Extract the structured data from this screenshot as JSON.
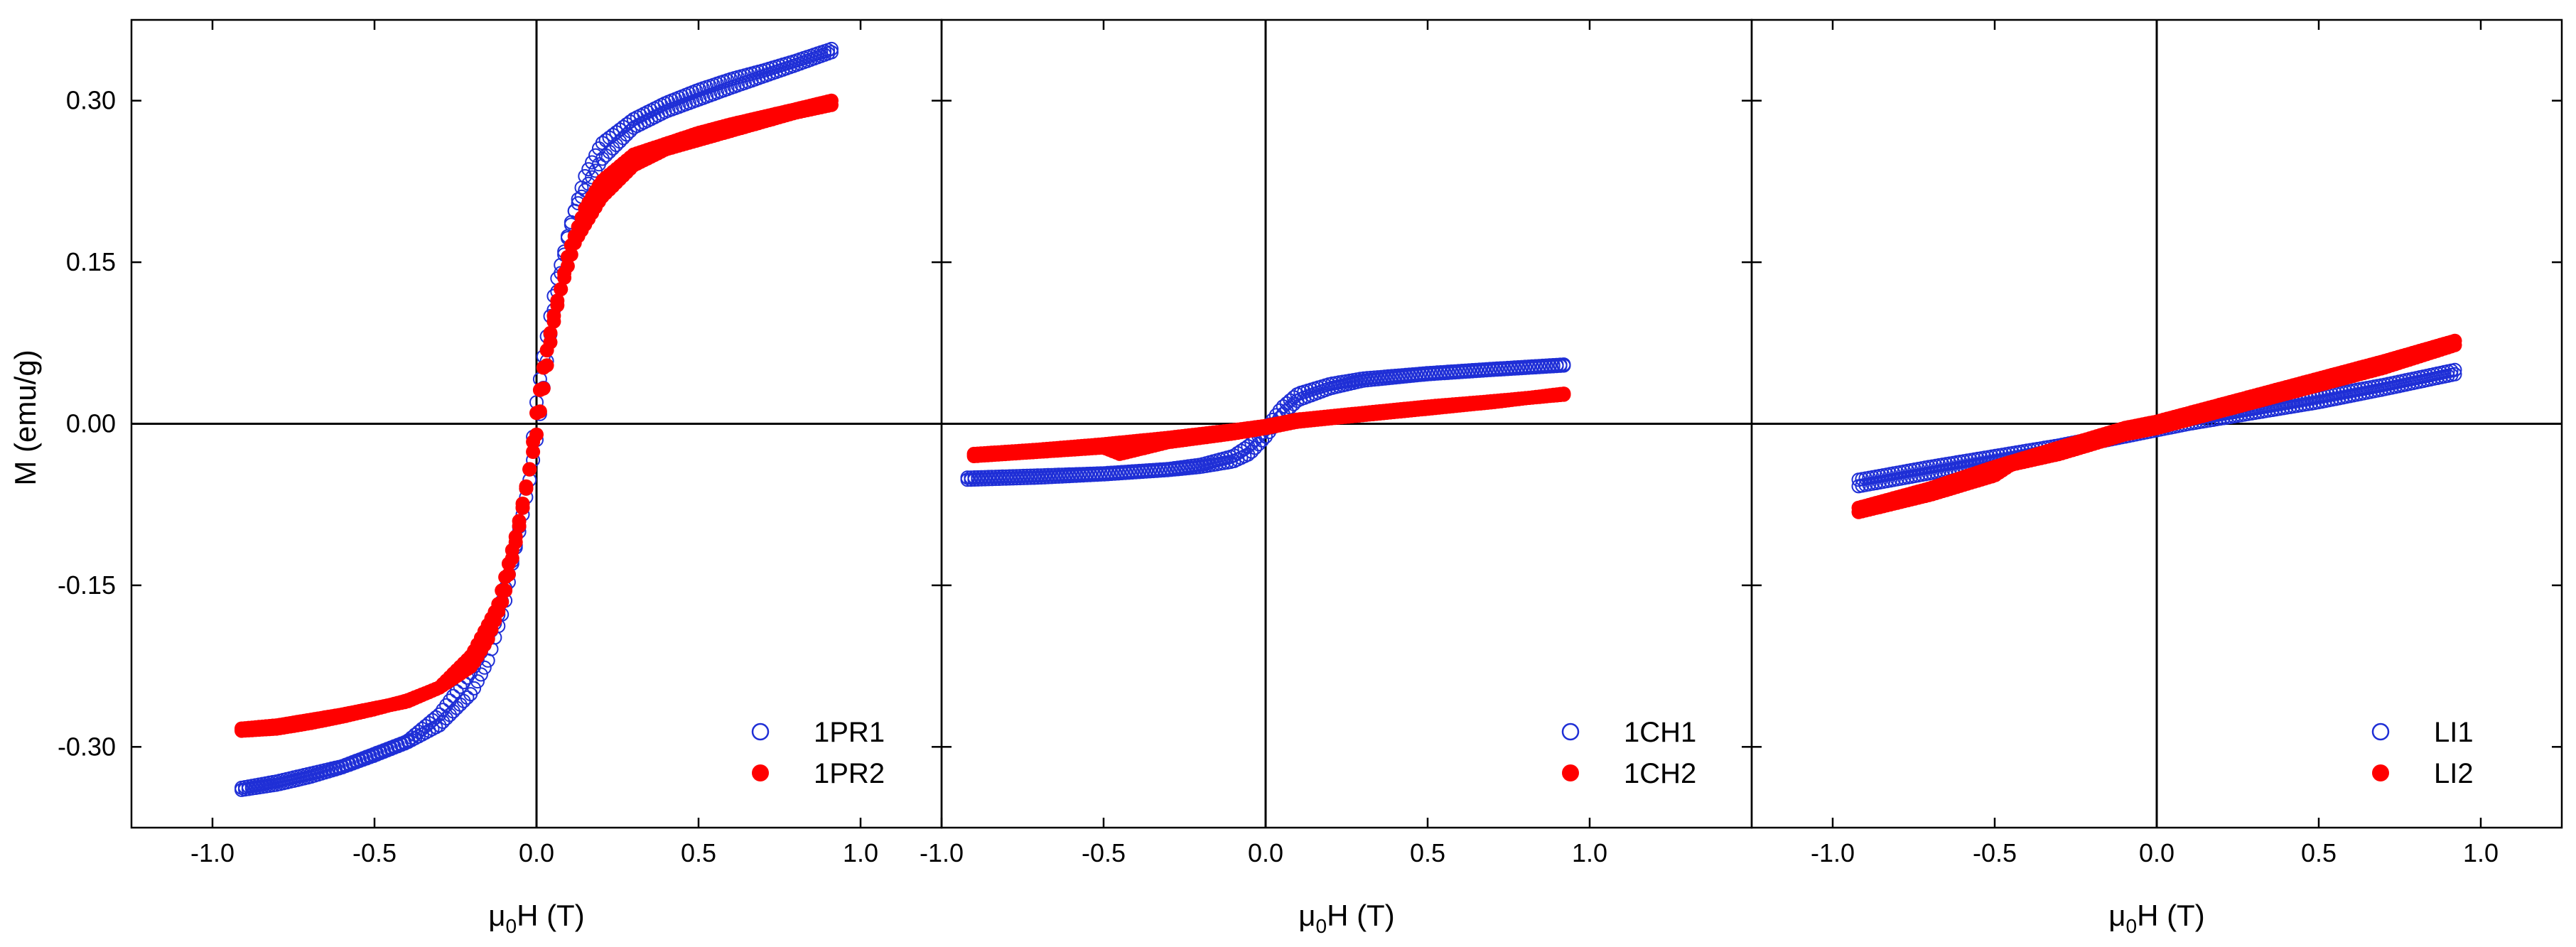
{
  "figure": {
    "ylabel": "M (emu/g)",
    "xlabel_mu": "μ",
    "xlabel_sub": "0",
    "xlabel_rest": "H (T)"
  },
  "colors": {
    "blue": "#1f2fd6",
    "red": "#ff0000",
    "axis": "#000000"
  },
  "chart_data": [
    {
      "type": "scatter",
      "title": "",
      "xlabel": "μ0H (T)",
      "ylabel": "M (emu/g)",
      "xlim": [
        -1.25,
        1.25
      ],
      "ylim": [
        -0.375,
        0.375
      ],
      "xticks": [
        -1.0,
        -0.5,
        0.0,
        0.5,
        1.0
      ],
      "xtick_labels": [
        "-1.0",
        "-0.5",
        "0.0",
        "0.5",
        "1.0"
      ],
      "yticks": [
        0.3,
        0.15,
        0.0,
        -0.15,
        -0.3
      ],
      "ytick_labels": [
        "0.30",
        "0.15",
        "0.00",
        "-0.15",
        "-0.30"
      ],
      "legend": "bottom-right",
      "series": [
        {
          "name": "1PR1",
          "marker": "open-circle",
          "color": "#1f2fd6",
          "branch_upper": {
            "x": [
              -0.91,
              -0.8,
              -0.6,
              -0.4,
              -0.3,
              -0.2,
              -0.12,
              -0.06,
              -0.02,
              0.0,
              0.02,
              0.05,
              0.1,
              0.15,
              0.2,
              0.3,
              0.4,
              0.5,
              0.6,
              0.7,
              0.8,
              0.91
            ],
            "y": [
              -0.338,
              -0.332,
              -0.318,
              -0.295,
              -0.27,
              -0.23,
              -0.18,
              -0.11,
              -0.05,
              -0.015,
              0.03,
              0.1,
              0.18,
              0.23,
              0.26,
              0.283,
              0.298,
              0.31,
              0.32,
              0.328,
              0.337,
              0.348
            ]
          },
          "branch_lower": {
            "x": [
              -0.91,
              -0.8,
              -0.7,
              -0.6,
              -0.5,
              -0.4,
              -0.3,
              -0.2,
              -0.15,
              -0.1,
              -0.05,
              -0.02,
              0.0,
              0.02,
              0.06,
              0.12,
              0.2,
              0.3,
              0.4,
              0.6,
              0.8,
              0.91
            ],
            "y": [
              -0.34,
              -0.335,
              -0.328,
              -0.319,
              -0.308,
              -0.296,
              -0.28,
              -0.25,
              -0.22,
              -0.17,
              -0.09,
              -0.04,
              0.02,
              0.06,
              0.13,
              0.2,
              0.245,
              0.275,
              0.29,
              0.312,
              0.333,
              0.345
            ]
          }
        },
        {
          "name": "1PR2",
          "marker": "filled-circle",
          "color": "#ff0000",
          "branch_upper": {
            "x": [
              -0.91,
              -0.8,
              -0.6,
              -0.4,
              -0.3,
              -0.2,
              -0.12,
              -0.06,
              -0.02,
              0.0,
              0.02,
              0.05,
              0.1,
              0.15,
              0.2,
              0.3,
              0.4,
              0.5,
              0.6,
              0.7,
              0.8,
              0.91
            ],
            "y": [
              -0.283,
              -0.28,
              -0.27,
              -0.258,
              -0.245,
              -0.215,
              -0.17,
              -0.1,
              -0.04,
              -0.01,
              0.03,
              0.09,
              0.16,
              0.2,
              0.225,
              0.25,
              0.26,
              0.27,
              0.278,
              0.285,
              0.292,
              0.3
            ]
          },
          "branch_lower": {
            "x": [
              -0.91,
              -0.8,
              -0.7,
              -0.6,
              -0.5,
              -0.4,
              -0.3,
              -0.2,
              -0.15,
              -0.1,
              -0.05,
              -0.02,
              0.0,
              0.02,
              0.06,
              0.12,
              0.2,
              0.3,
              0.4,
              0.6,
              0.8,
              0.91
            ],
            "y": [
              -0.285,
              -0.283,
              -0.278,
              -0.272,
              -0.265,
              -0.257,
              -0.245,
              -0.225,
              -0.2,
              -0.16,
              -0.09,
              -0.04,
              0.01,
              0.05,
              0.11,
              0.17,
              0.21,
              0.24,
              0.255,
              0.272,
              0.289,
              0.296
            ]
          }
        }
      ]
    },
    {
      "type": "scatter",
      "title": "",
      "xlabel": "μ0H (T)",
      "ylabel": "",
      "xlim": [
        -1.0,
        1.5
      ],
      "ylim": [
        -0.375,
        0.375
      ],
      "xticks": [
        -1.0,
        -0.5,
        0.0,
        0.5,
        1.0
      ],
      "xtick_labels": [
        "-1.0",
        "-0.5",
        "0.0",
        "0.5",
        "1.0"
      ],
      "legend": "bottom-right",
      "series": [
        {
          "name": "1CH1",
          "marker": "open-circle",
          "color": "#1f2fd6",
          "branch_upper": {
            "x": [
              -0.92,
              -0.7,
              -0.5,
              -0.3,
              -0.2,
              -0.1,
              -0.05,
              0.0,
              0.05,
              0.1,
              0.2,
              0.3,
              0.5,
              0.7,
              0.92
            ],
            "y": [
              -0.05,
              -0.048,
              -0.046,
              -0.042,
              -0.038,
              -0.03,
              -0.02,
              -0.005,
              0.015,
              0.028,
              0.037,
              0.042,
              0.047,
              0.051,
              0.055
            ]
          },
          "branch_lower": {
            "x": [
              -0.92,
              -0.7,
              -0.5,
              -0.3,
              -0.2,
              -0.1,
              -0.05,
              0.0,
              0.05,
              0.1,
              0.2,
              0.3,
              0.5,
              0.7,
              0.92
            ],
            "y": [
              -0.052,
              -0.05,
              -0.047,
              -0.043,
              -0.04,
              -0.035,
              -0.028,
              -0.012,
              0.008,
              0.022,
              0.033,
              0.04,
              0.046,
              0.05,
              0.054
            ]
          }
        },
        {
          "name": "1CH2",
          "marker": "filled-circle",
          "color": "#ff0000",
          "branch_upper": {
            "x": [
              -0.9,
              -0.7,
              -0.5,
              -0.3,
              -0.1,
              0.0,
              0.1,
              0.3,
              0.5,
              0.7,
              0.92
            ],
            "y": [
              -0.028,
              -0.024,
              -0.019,
              -0.013,
              -0.006,
              -0.002,
              0.004,
              0.01,
              0.016,
              0.021,
              0.027
            ]
          },
          "branch_lower": {
            "x": [
              -0.9,
              -0.7,
              -0.5,
              -0.45,
              -0.3,
              -0.1,
              0.0,
              0.1,
              0.3,
              0.5,
              0.7,
              0.92
            ],
            "y": [
              -0.03,
              -0.026,
              -0.022,
              -0.028,
              -0.017,
              -0.009,
              -0.004,
              0.002,
              0.008,
              0.014,
              0.02,
              0.028
            ]
          }
        }
      ]
    },
    {
      "type": "scatter",
      "title": "",
      "xlabel": "μ0H (T)",
      "ylabel": "",
      "xlim": [
        -1.25,
        1.25
      ],
      "ylim": [
        -0.375,
        0.375
      ],
      "xticks": [
        -1.0,
        -0.5,
        0.0,
        0.5,
        1.0
      ],
      "xtick_labels": [
        "-1.0",
        "-0.5",
        "0.0",
        "0.5",
        "1.0"
      ],
      "legend": "bottom-right",
      "series": [
        {
          "name": "LI1",
          "marker": "open-circle",
          "color": "#1f2fd6",
          "branch_upper": {
            "x": [
              -0.92,
              -0.7,
              -0.5,
              -0.3,
              -0.1,
              0.0,
              0.1,
              0.3,
              0.5,
              0.7,
              0.92
            ],
            "y": [
              -0.052,
              -0.04,
              -0.03,
              -0.02,
              -0.008,
              -0.002,
              0.004,
              0.014,
              0.025,
              0.036,
              0.05
            ]
          },
          "branch_lower": {
            "x": [
              -0.92,
              -0.7,
              -0.5,
              -0.3,
              -0.1,
              0.0,
              0.1,
              0.3,
              0.5,
              0.7,
              0.92
            ],
            "y": [
              -0.058,
              -0.046,
              -0.035,
              -0.024,
              -0.012,
              -0.006,
              0.0,
              0.01,
              0.02,
              0.032,
              0.046
            ]
          }
        },
        {
          "name": "LI2",
          "marker": "filled-circle",
          "color": "#ff0000",
          "branch_upper": {
            "x": [
              -0.92,
              -0.7,
              -0.5,
              -0.3,
              -0.1,
              0.0,
              0.1,
              0.3,
              0.5,
              0.7,
              0.92
            ],
            "y": [
              -0.078,
              -0.06,
              -0.04,
              -0.022,
              -0.004,
              0.002,
              0.01,
              0.026,
              0.042,
              0.058,
              0.077
            ]
          },
          "branch_lower": {
            "x": [
              -0.92,
              -0.7,
              -0.5,
              -0.45,
              -0.3,
              -0.1,
              0.0,
              0.1,
              0.3,
              0.5,
              0.7,
              0.92
            ],
            "y": [
              -0.082,
              -0.066,
              -0.048,
              -0.038,
              -0.028,
              -0.01,
              -0.004,
              0.004,
              0.02,
              0.036,
              0.052,
              0.073
            ]
          }
        }
      ]
    }
  ]
}
